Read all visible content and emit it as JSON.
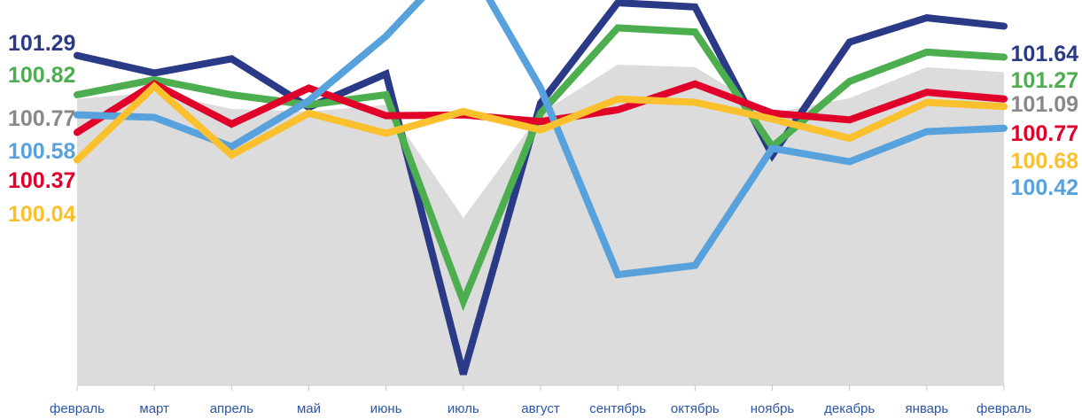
{
  "chart_data": {
    "type": "line",
    "title": "",
    "xlabel": "",
    "ylabel": "",
    "ylim": [
      97.4,
      101.9
    ],
    "grid": false,
    "legend": "none",
    "categories": [
      "февраль",
      "март",
      "апрель",
      "май",
      "июнь",
      "июль",
      "август",
      "сентябрь",
      "октябрь",
      "ноябрь",
      "декабрь",
      "январь",
      "февраль"
    ],
    "series": [
      {
        "key": "gray",
        "type": "area",
        "color": "#dcdcdc",
        "values": [
          100.77,
          100.85,
          100.65,
          100.62,
          100.7,
          99.35,
          100.6,
          101.18,
          101.15,
          100.6,
          100.78,
          101.15,
          101.09
        ],
        "start_label": "100.77",
        "end_label": "101.09",
        "label_color": "#888888"
      },
      {
        "key": "navy",
        "color": "#2b3a87",
        "values": [
          101.29,
          101.08,
          101.25,
          100.67,
          101.07,
          97.48,
          100.72,
          101.92,
          101.87,
          100.1,
          101.45,
          101.74,
          101.64
        ],
        "start_label": "101.29",
        "end_label": "101.64"
      },
      {
        "key": "green",
        "color": "#4cae4f",
        "values": [
          100.82,
          101.0,
          100.82,
          100.7,
          100.82,
          98.35,
          100.6,
          101.62,
          101.57,
          100.2,
          100.98,
          101.33,
          101.27
        ],
        "start_label": "100.82",
        "end_label": "101.27"
      },
      {
        "key": "red",
        "color": "#e0002a",
        "values": [
          100.37,
          100.95,
          100.47,
          100.9,
          100.57,
          100.58,
          100.5,
          100.64,
          100.95,
          100.6,
          100.52,
          100.85,
          100.77
        ],
        "start_label": "100.37",
        "end_label": "100.77"
      },
      {
        "key": "blue",
        "color": "#57a2dd",
        "values": [
          100.58,
          100.55,
          100.2,
          100.75,
          101.52,
          102.5,
          100.9,
          98.67,
          98.78,
          100.18,
          100.02,
          100.38,
          100.42
        ],
        "start_label": "100.58",
        "end_label": "100.42"
      },
      {
        "key": "yellow",
        "color": "#fbc02d",
        "values": [
          100.04,
          100.92,
          100.1,
          100.6,
          100.36,
          100.62,
          100.4,
          100.77,
          100.73,
          100.53,
          100.3,
          100.73,
          100.68
        ],
        "start_label": "100.04",
        "end_label": "100.68"
      }
    ]
  }
}
